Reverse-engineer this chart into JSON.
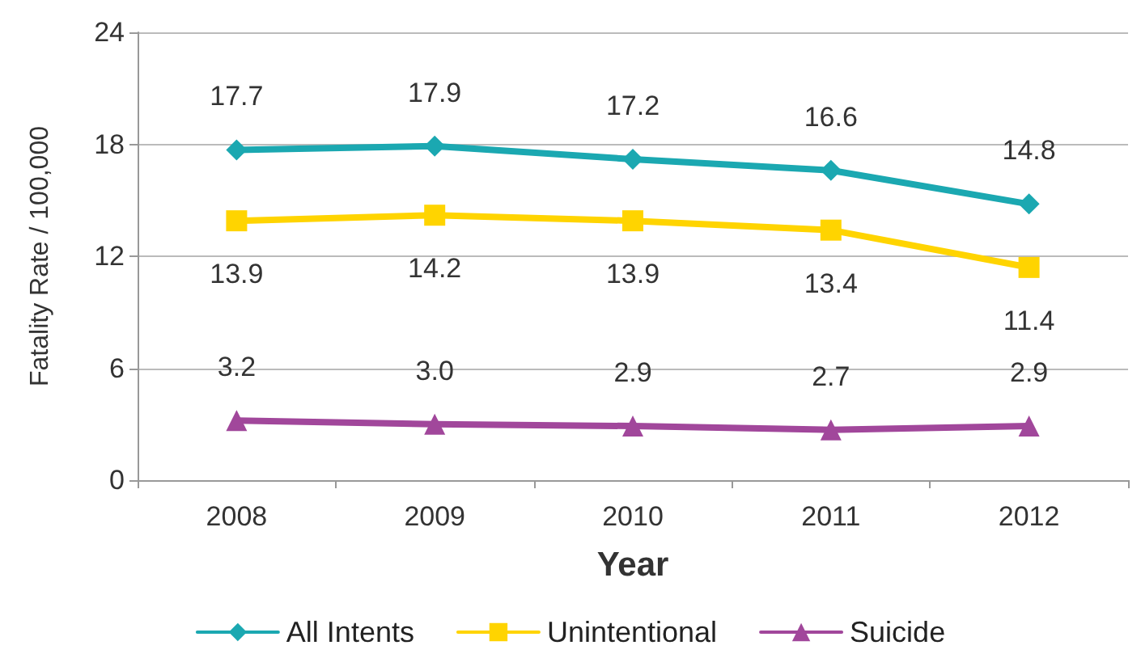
{
  "chart_data": {
    "type": "line",
    "xlabel": "Year",
    "ylabel": "Fatality Rate / 100,000",
    "categories": [
      "2008",
      "2009",
      "2010",
      "2011",
      "2012"
    ],
    "ylim": [
      0,
      24
    ],
    "yticks": [
      0,
      6,
      12,
      18,
      24
    ],
    "grid": "y",
    "legend": "bottom",
    "series": [
      {
        "name": "All Intents",
        "color": "#1ba8b1",
        "marker": "diamond",
        "values": [
          17.7,
          17.9,
          17.2,
          16.6,
          14.8
        ],
        "value_labels": [
          "17.7",
          "17.9",
          "17.2",
          "16.6",
          "14.8"
        ]
      },
      {
        "name": "Unintentional",
        "color": "#ffd400",
        "marker": "square",
        "values": [
          13.9,
          14.2,
          13.9,
          13.4,
          11.4
        ],
        "value_labels": [
          "13.9",
          "14.2",
          "13.9",
          "13.4",
          "11.4"
        ]
      },
      {
        "name": "Suicide",
        "color": "#a1479b",
        "marker": "triangle",
        "values": [
          3.2,
          3.0,
          2.9,
          2.7,
          2.9
        ],
        "value_labels": [
          "3.2",
          "3.0",
          "2.9",
          "2.7",
          "2.9"
        ]
      }
    ]
  }
}
